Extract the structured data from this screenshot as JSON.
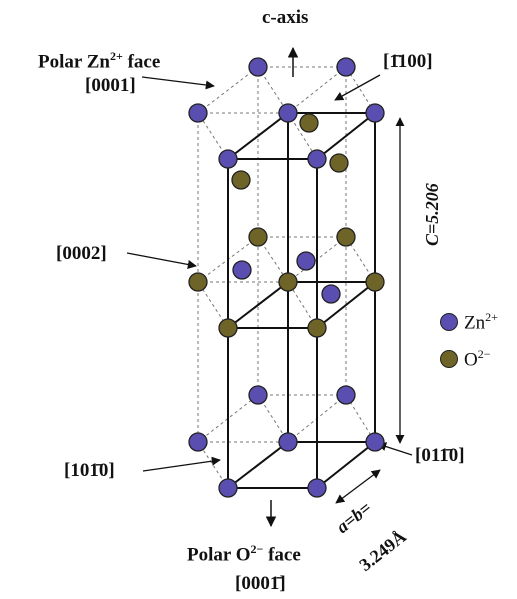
{
  "labels": {
    "c_axis": "c-axis",
    "polar_zn_face_l1": "Polar Zn",
    "polar_zn_face_sup": "2+",
    "polar_zn_face_l1b": " face",
    "polar_zn_face_l2": "[0001]",
    "dir_1100": "[1̄100]",
    "dir_0002": "[0002]",
    "c_value": "C=5.206",
    "dir_1010": "[101̄0]",
    "dir_0110": "[011̄0]",
    "a_b_l1": "a=b=",
    "a_b_l2": "3.249Å",
    "polar_o_face_l1": "Polar O",
    "polar_o_face_sup": "2−",
    "polar_o_face_l1b": " face",
    "polar_o_face_l2": "[0001̄]"
  },
  "legend": [
    {
      "ion": "Zn",
      "charge": "2+",
      "color": "#5a4fb0"
    },
    {
      "ion": "O",
      "charge": "2−",
      "color": "#6e6428"
    }
  ],
  "colors": {
    "zn": "#5a4fb0",
    "o": "#6e6428",
    "line": "#111111",
    "dash": "#777777"
  }
}
